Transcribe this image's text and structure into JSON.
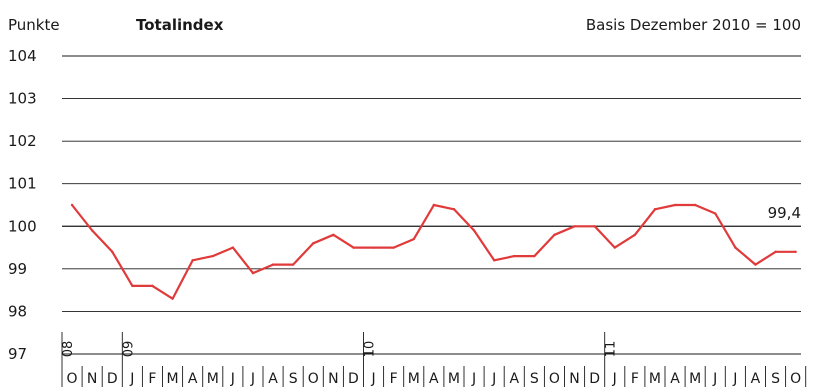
{
  "header": {
    "unit_label": "Punkte",
    "title": "Totalindex",
    "basis_note": "Basis Dezember 2010 = 100"
  },
  "chart_data": {
    "type": "line",
    "title": "Totalindex",
    "ylabel": "Punkte",
    "ylim": [
      97,
      104
    ],
    "yticks": [
      97,
      98,
      99,
      100,
      101,
      102,
      103,
      104
    ],
    "ytick_labels": [
      "97",
      "98",
      "99",
      "100",
      "101",
      "102",
      "103",
      "104"
    ],
    "reference_line": 100,
    "grid": true,
    "categories": [
      "O",
      "N",
      "D",
      "J",
      "F",
      "M",
      "A",
      "M",
      "J",
      "J",
      "A",
      "S",
      "O",
      "N",
      "D",
      "J",
      "F",
      "M",
      "A",
      "M",
      "J",
      "J",
      "A",
      "S",
      "O",
      "N",
      "D",
      "J",
      "F",
      "M",
      "A",
      "M",
      "J",
      "J",
      "A",
      "S",
      "O"
    ],
    "years": [
      {
        "label": "08",
        "start_index": 0
      },
      {
        "label": "09",
        "start_index": 3
      },
      {
        "label": "10",
        "start_index": 15
      },
      {
        "label": "11",
        "start_index": 27
      }
    ],
    "series": [
      {
        "color": "#e03a3a",
        "values": [
          100.5,
          99.9,
          99.4,
          98.6,
          98.6,
          98.3,
          99.2,
          99.3,
          99.5,
          98.9,
          99.1,
          99.1,
          99.6,
          99.8,
          99.5,
          99.5,
          99.5,
          99.7,
          100.5,
          100.4,
          99.9,
          99.2,
          99.3,
          99.3,
          99.8,
          100.0,
          100.0,
          99.5,
          99.8,
          100.4,
          100.5,
          100.5,
          100.3,
          99.5,
          99.1,
          99.4,
          99.4
        ]
      }
    ],
    "annotation": {
      "text": "99,4",
      "index": 36
    }
  }
}
